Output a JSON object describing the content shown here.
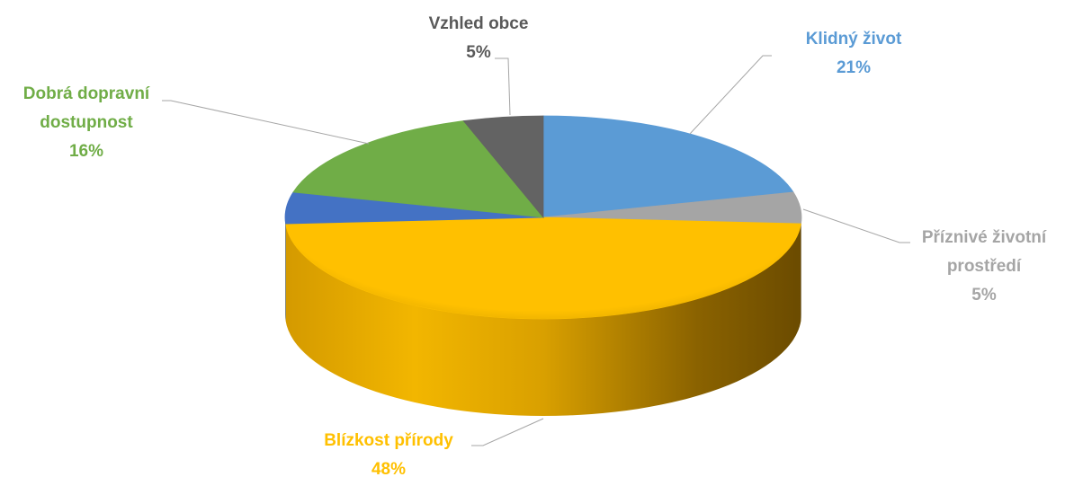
{
  "chart_data": {
    "type": "pie",
    "style": "3d",
    "title": "",
    "slices": [
      {
        "name": "Klidný život",
        "value": 21,
        "label_lines": [
          "Klidný život"
        ],
        "percent_label": "21%",
        "color": "#5B9BD5"
      },
      {
        "name": "Příznivé životní prostředí",
        "value": 5,
        "label_lines": [
          "Příznivé životní",
          "prostředí"
        ],
        "percent_label": "5%",
        "color": "#A5A5A5"
      },
      {
        "name": "Blízkost přírody",
        "value": 48,
        "label_lines": [
          "Blízkost přírody"
        ],
        "percent_label": "48%",
        "color": "#FFC000"
      },
      {
        "name": "",
        "value": 5,
        "label_lines": [],
        "percent_label": "",
        "color": "#4472C4"
      },
      {
        "name": "Dobrá dopravní dostupnost",
        "value": 16,
        "label_lines": [
          "Dobrá dopravní",
          "dostupnost"
        ],
        "percent_label": "16%",
        "color": "#70AD47"
      },
      {
        "name": "Vzhled obce",
        "value": 5,
        "label_lines": [
          "Vzhled obce"
        ],
        "percent_label": "5%",
        "color": "#636363"
      }
    ],
    "legend": "none"
  }
}
